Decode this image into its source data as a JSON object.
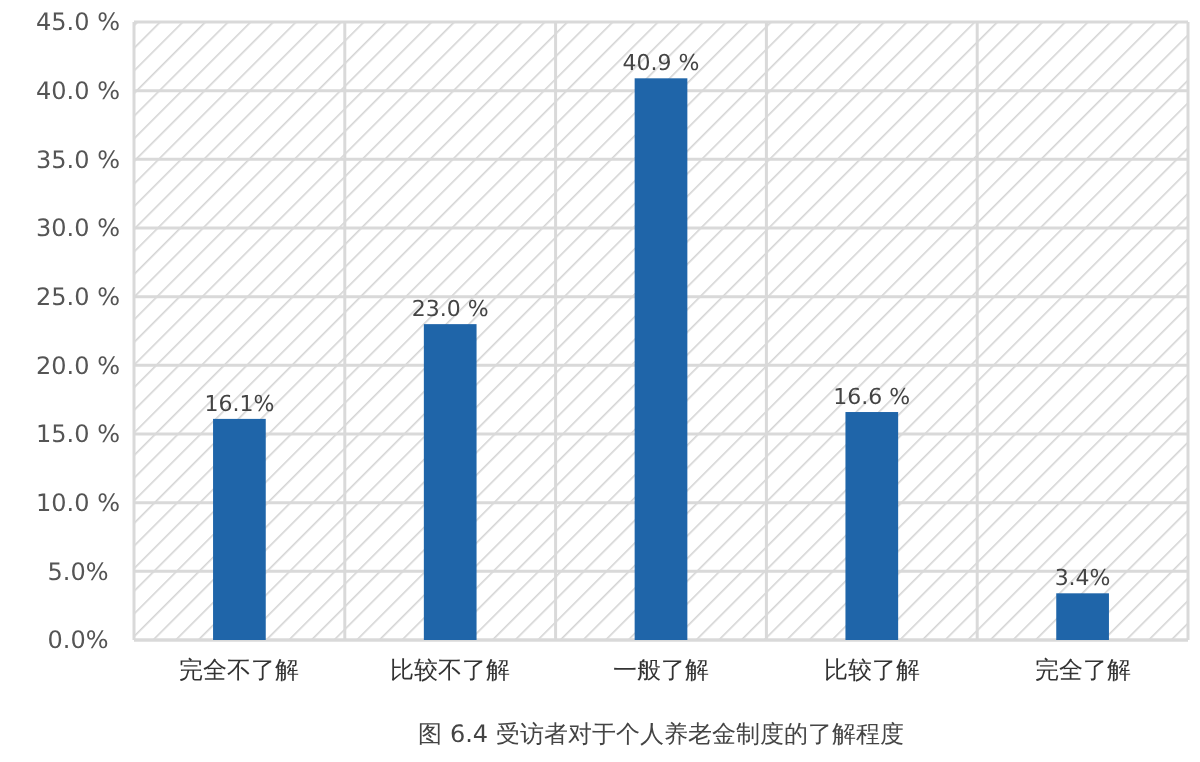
{
  "chart_data": {
    "type": "bar",
    "title": "图 6.4 受访者对于个人养老金制度的了解程度",
    "categories": [
      "完全不了解",
      "比较不了解",
      "一般了解",
      "比较了解",
      "完全了解"
    ],
    "values": [
      16.1,
      23.0,
      40.9,
      16.6,
      3.4
    ],
    "value_labels": [
      "16.1%",
      "23.0 %",
      "40.9 %",
      "16.6 %",
      "3.4%"
    ],
    "color": "#1f65a9",
    "ylim": [
      0,
      45
    ],
    "yticks": [
      {
        "value": 0,
        "label": "0.0%"
      },
      {
        "value": 5,
        "label": "5.0%"
      },
      {
        "value": 10,
        "label": "10.0 %"
      },
      {
        "value": 15,
        "label": "15.0 %"
      },
      {
        "value": 20,
        "label": "20.0 %"
      },
      {
        "value": 25,
        "label": "25.0 %"
      },
      {
        "value": 30,
        "label": "30.0 %"
      },
      {
        "value": 35,
        "label": "35.0 %"
      },
      {
        "value": 40,
        "label": "40.0 %"
      },
      {
        "value": 45,
        "label": "45.0 %"
      }
    ],
    "grid": true
  }
}
